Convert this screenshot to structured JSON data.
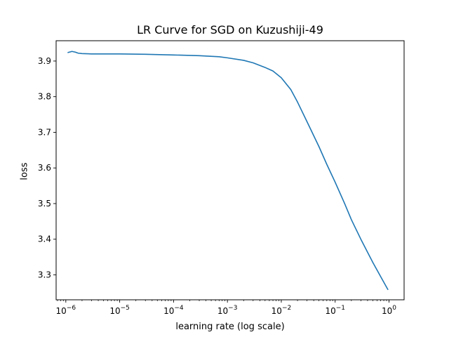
{
  "chart_data": {
    "type": "line",
    "title": "LR Curve for SGD on Kuzushiji-49",
    "xlabel": "learning rate (log scale)",
    "ylabel": "loss",
    "xscale": "log",
    "xlim_log10": [
      -6.18,
      0.28
    ],
    "ylim": [
      3.23,
      3.957
    ],
    "grid": false,
    "xticks": [
      {
        "log10": -6,
        "base": "10",
        "exp": "−6"
      },
      {
        "log10": -5,
        "base": "10",
        "exp": "−5"
      },
      {
        "log10": -4,
        "base": "10",
        "exp": "−4"
      },
      {
        "log10": -3,
        "base": "10",
        "exp": "−3"
      },
      {
        "log10": -2,
        "base": "10",
        "exp": "−2"
      },
      {
        "log10": -1,
        "base": "10",
        "exp": "−1"
      },
      {
        "log10": 0,
        "base": "10",
        "exp": "0"
      }
    ],
    "yticks": [
      {
        "value": 3.3,
        "label": "3.3"
      },
      {
        "value": 3.4,
        "label": "3.4"
      },
      {
        "value": 3.5,
        "label": "3.5"
      },
      {
        "value": 3.6,
        "label": "3.6"
      },
      {
        "value": 3.7,
        "label": "3.7"
      },
      {
        "value": 3.8,
        "label": "3.8"
      },
      {
        "value": 3.9,
        "label": "3.9"
      }
    ],
    "series": [
      {
        "name": "loss",
        "color": "#1f77b4",
        "points": [
          {
            "lr": 1.1e-06,
            "loss": 3.924
          },
          {
            "lr": 1.3e-06,
            "loss": 3.927
          },
          {
            "lr": 1.5e-06,
            "loss": 3.925
          },
          {
            "lr": 1.7e-06,
            "loss": 3.922
          },
          {
            "lr": 2e-06,
            "loss": 3.921
          },
          {
            "lr": 3e-06,
            "loss": 3.92
          },
          {
            "lr": 5e-06,
            "loss": 3.92
          },
          {
            "lr": 1e-05,
            "loss": 3.92
          },
          {
            "lr": 3e-05,
            "loss": 3.919
          },
          {
            "lr": 0.0001,
            "loss": 3.917
          },
          {
            "lr": 0.0003,
            "loss": 3.915
          },
          {
            "lr": 0.0007,
            "loss": 3.912
          },
          {
            "lr": 0.001,
            "loss": 3.909
          },
          {
            "lr": 0.002,
            "loss": 3.902
          },
          {
            "lr": 0.003,
            "loss": 3.895
          },
          {
            "lr": 0.005,
            "loss": 3.882
          },
          {
            "lr": 0.007,
            "loss": 3.872
          },
          {
            "lr": 0.01,
            "loss": 3.853
          },
          {
            "lr": 0.015,
            "loss": 3.82
          },
          {
            "lr": 0.02,
            "loss": 3.785
          },
          {
            "lr": 0.03,
            "loss": 3.73
          },
          {
            "lr": 0.05,
            "loss": 3.66
          },
          {
            "lr": 0.07,
            "loss": 3.61
          },
          {
            "lr": 0.1,
            "loss": 3.56
          },
          {
            "lr": 0.15,
            "loss": 3.5
          },
          {
            "lr": 0.2,
            "loss": 3.455
          },
          {
            "lr": 0.3,
            "loss": 3.4
          },
          {
            "lr": 0.5,
            "loss": 3.335
          },
          {
            "lr": 0.7,
            "loss": 3.295
          },
          {
            "lr": 0.95,
            "loss": 3.259
          }
        ]
      }
    ]
  }
}
